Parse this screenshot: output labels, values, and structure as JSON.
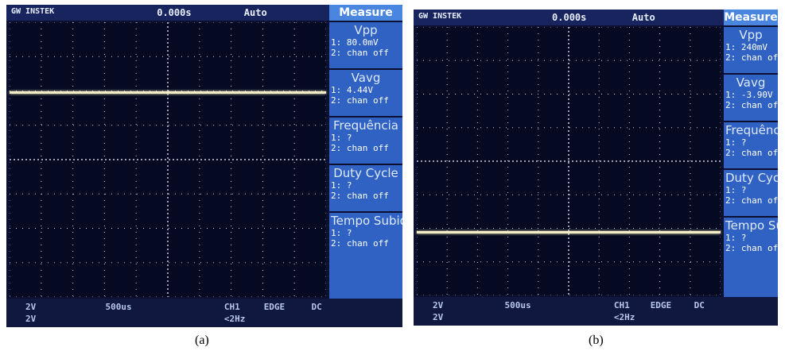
{
  "panels": [
    {
      "caption": "(a)",
      "header": {
        "brand": "GW INSTEK",
        "time": "0.000s",
        "mode": "Auto",
        "menu_title": "Measure"
      },
      "measurements": [
        {
          "title": "Vpp",
          "ch1": "1: 80.0mV",
          "ch2": "2: chan off"
        },
        {
          "title": "Vavg",
          "ch1": "1: 4.44V",
          "ch2": "2: chan off"
        },
        {
          "title": "Frequência",
          "ch1": "1:   ?",
          "ch2": "2: chan off"
        },
        {
          "title": "Duty Cycle",
          "ch1": "1:   ?",
          "ch2": "2: chan off"
        },
        {
          "title": "Tempo Subida",
          "ch1": "1:   ?",
          "ch2": "2: chan off"
        }
      ],
      "footer": {
        "ch1_scale": "2V",
        "ch2_scale": "2V",
        "timebase": "500us",
        "trigger_source": "CH1",
        "trigger_type": "EDGE",
        "coupling": "DC",
        "trigger_freq": "<2Hz"
      }
    },
    {
      "caption": "(b)",
      "header": {
        "brand": "GW INSTEK",
        "time": "0.000s",
        "mode": "Auto",
        "menu_title": "Measure"
      },
      "measurements": [
        {
          "title": "Vpp",
          "ch1": "1: 240mV",
          "ch2": "2: chan of"
        },
        {
          "title": "Vavg",
          "ch1": "1: -3.90V",
          "ch2": "2: chan of"
        },
        {
          "title": "Frequênci",
          "ch1": "1:   ?",
          "ch2": "2: chan of"
        },
        {
          "title": "Duty Cyck",
          "ch1": "1:   ?",
          "ch2": "2: chan of"
        },
        {
          "title": "Tempo Subida",
          "ch1": "1:   ?",
          "ch2": "2: chan of"
        }
      ],
      "footer": {
        "ch1_scale": "2V",
        "ch2_scale": "2V",
        "timebase": "500us",
        "trigger_source": "CH1",
        "trigger_type": "EDGE",
        "coupling": "DC",
        "trigger_freq": "<2Hz"
      }
    }
  ]
}
